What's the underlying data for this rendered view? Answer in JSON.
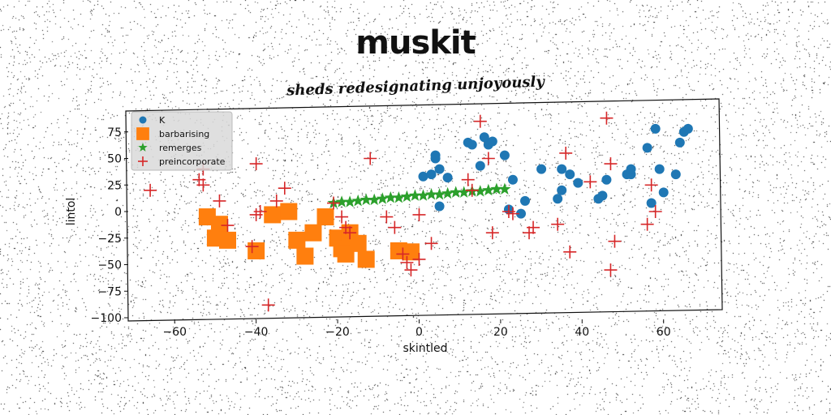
{
  "title": "muskit",
  "subtitle": "sheds redesignating unjoyously",
  "chart_data": {
    "type": "scatter",
    "xlabel": "skintled",
    "ylabel": "lintol",
    "xlim": [
      -71,
      74
    ],
    "ylim": [
      -100,
      100
    ],
    "xticks": [
      -60,
      -40,
      -20,
      0,
      20,
      40,
      60
    ],
    "yticks": [
      -100,
      -75,
      -50,
      -25,
      0,
      25,
      50,
      75
    ],
    "grid": false,
    "legend_position": "top-left",
    "series": [
      {
        "name": "K",
        "marker": "circle",
        "color": "#1f77b4",
        "x": [
          1,
          3,
          4,
          4,
          5,
          5,
          7,
          12,
          13,
          15,
          16,
          17,
          18,
          21,
          22,
          23,
          25,
          26,
          30,
          34,
          35,
          35,
          37,
          39,
          44,
          45,
          46,
          51,
          52,
          52,
          56,
          57,
          58,
          59,
          60,
          63,
          64,
          65,
          66
        ],
        "y": [
          33,
          35,
          53,
          50,
          40,
          5,
          32,
          65,
          63,
          43,
          70,
          63,
          66,
          53,
          2,
          30,
          -2,
          10,
          40,
          12,
          20,
          40,
          35,
          27,
          12,
          15,
          30,
          35,
          35,
          40,
          60,
          8,
          78,
          40,
          18,
          35,
          65,
          75,
          78
        ]
      },
      {
        "name": "barbarising",
        "marker": "square",
        "color": "#ff7f0e",
        "x": [
          -52,
          -50,
          -49,
          -47,
          -40,
          -36,
          -32,
          -30,
          -28,
          -26,
          -23,
          -20,
          -19,
          -18,
          -17,
          -15,
          -13,
          -5,
          -2
        ],
        "y": [
          -5,
          -25,
          -12,
          -27,
          -37,
          -3,
          0,
          -27,
          -42,
          -20,
          -5,
          -25,
          -35,
          -40,
          -20,
          -30,
          -45,
          -37,
          -38
        ]
      },
      {
        "name": "remerges",
        "marker": "star",
        "color": "#2ca02c",
        "x": [
          -21,
          -19,
          -17,
          -15,
          -13,
          -11,
          -9,
          -7,
          -5,
          -3,
          -1,
          1,
          3,
          5,
          7,
          9,
          11,
          13,
          15,
          17,
          19,
          21
        ],
        "y": [
          8,
          9,
          9,
          10,
          11,
          11,
          12,
          13,
          13,
          14,
          15,
          15,
          16,
          16,
          17,
          18,
          18,
          19,
          19,
          20,
          21,
          21
        ]
      },
      {
        "name": "preincorporate",
        "marker": "plus",
        "color": "#d62728",
        "x": [
          -66,
          -54,
          -53,
          -53,
          -49,
          -47,
          -41,
          -40,
          -40,
          -39,
          -37,
          -35,
          -33,
          -21,
          -19,
          -18,
          -17,
          -12,
          -8,
          -6,
          -4,
          -3,
          -2,
          0,
          0,
          3,
          12,
          13,
          15,
          17,
          18,
          22,
          23,
          27,
          28,
          34,
          36,
          37,
          42,
          46,
          47,
          47,
          48,
          56,
          57,
          58
        ],
        "y": [
          20,
          30,
          40,
          25,
          10,
          -13,
          -33,
          45,
          -3,
          0,
          -88,
          10,
          22,
          8,
          -5,
          -15,
          -20,
          50,
          -5,
          -15,
          -40,
          -48,
          -55,
          -45,
          -3,
          -30,
          30,
          20,
          85,
          50,
          -20,
          0,
          -2,
          -20,
          -15,
          -12,
          55,
          -38,
          28,
          88,
          45,
          -55,
          -28,
          -12,
          25,
          0
        ]
      }
    ]
  }
}
